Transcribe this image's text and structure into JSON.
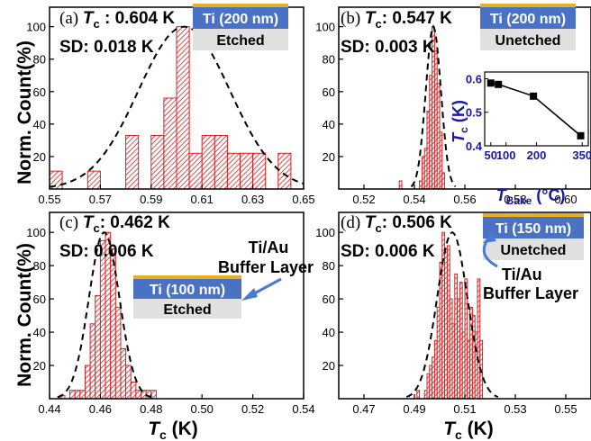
{
  "colors": {
    "bar_stroke": "#d42020",
    "fit_line": "#000000",
    "ti_layer": "#4a72c4",
    "au_layer": "#e8b020",
    "etch_box": "#e0e0e0",
    "inset_axis_text": "#1a1aa0",
    "arrow": "#4a7ad0"
  },
  "shared": {
    "ylabel": "Norm. Count(%)",
    "xlabel_T": "T",
    "xlabel_sub": "c",
    "xlabel_unit": " (K)"
  },
  "chart_data": [
    {
      "id": "a",
      "type": "bar",
      "panel_label": "(a) ",
      "tc_label": "T",
      "tc_sub": "c",
      "tc_value": " : 0.604 K",
      "sd_text": "SD: 0.018 K",
      "layer_label": "Ti (200 nm)",
      "etch_label": "Etched",
      "xlim": [
        0.55,
        0.65
      ],
      "ylim": [
        0,
        112
      ],
      "xticks": [
        "0.55",
        "0.57",
        "0.59",
        "0.61",
        "0.63",
        "0.65"
      ],
      "xtick_values": [
        0.55,
        0.57,
        0.59,
        0.61,
        0.63,
        0.65
      ],
      "yticks": [
        "20",
        "40",
        "60",
        "80",
        "100"
      ],
      "ytick_values": [
        20,
        40,
        60,
        80,
        100
      ],
      "bin_width": 0.005,
      "bins": [
        0.55,
        0.565,
        0.58,
        0.59,
        0.595,
        0.6,
        0.605,
        0.61,
        0.615,
        0.62,
        0.625,
        0.63,
        0.64
      ],
      "values": [
        11,
        11,
        33,
        33,
        56,
        100,
        22,
        33,
        33,
        22,
        22,
        22,
        22
      ],
      "fit": {
        "mu": 0.603,
        "sigma": 0.018,
        "amp": 100
      }
    },
    {
      "id": "b",
      "type": "bar",
      "panel_label": "(b) ",
      "tc_label": "T",
      "tc_sub": "c",
      "tc_value": ": 0.547 K",
      "sd_text": "SD: 0.003 K",
      "layer_label": "Ti (200 nm)",
      "etch_label": "Unetched",
      "xlim": [
        0.51,
        0.61
      ],
      "ylim": [
        0,
        112
      ],
      "xticks": [
        "0.52",
        "0.54",
        "0.56",
        "0.58",
        "0.60"
      ],
      "xtick_values": [
        0.52,
        0.54,
        0.56,
        0.58,
        0.6
      ],
      "yticks": [
        "20",
        "40",
        "60",
        "80",
        "100"
      ],
      "ytick_values": [
        20,
        40,
        60,
        80,
        100
      ],
      "bin_width": 0.001,
      "bins": [
        0.534,
        0.542,
        0.543,
        0.544,
        0.545,
        0.546,
        0.547,
        0.548,
        0.549,
        0.55,
        0.551
      ],
      "values": [
        5,
        5,
        20,
        25,
        48,
        70,
        100,
        85,
        65,
        35,
        10
      ],
      "fit": {
        "mu": 0.5475,
        "sigma": 0.003,
        "amp": 100
      },
      "inset": {
        "ylabel_T": "T",
        "ylabel_sub": "c",
        "ylabel_unit": " (K)",
        "xlabel_T": "T",
        "xlabel_sub": "Bake",
        "xlabel_unit": " (°C)",
        "xlim": [
          30,
          370
        ],
        "ylim": [
          0.4,
          0.62
        ],
        "xticks": [
          "50",
          "100",
          "200",
          "350"
        ],
        "xtick_values": [
          50,
          100,
          200,
          350
        ],
        "yticks": [
          "0.4",
          "0.5",
          "0.6"
        ],
        "ytick_values": [
          0.4,
          0.5,
          0.6
        ],
        "x": [
          50,
          75,
          190,
          345
        ],
        "y": [
          0.587,
          0.583,
          0.548,
          0.43
        ]
      }
    },
    {
      "id": "c",
      "type": "bar",
      "panel_label": "(c) ",
      "tc_label": "T",
      "tc_sub": "c",
      "tc_value": ": 0.462 K",
      "sd_text": "SD: 0.006 K",
      "layer_label": "Ti (100 nm)",
      "etch_label": "Etched",
      "buffer_label_1": "Ti/Au",
      "buffer_label_2": "Buffer Layer",
      "xlim": [
        0.44,
        0.54
      ],
      "ylim": [
        0,
        112
      ],
      "xticks": [
        "0.44",
        "0.46",
        "0.48",
        "0.50",
        "0.52",
        "0.54"
      ],
      "xtick_values": [
        0.44,
        0.46,
        0.48,
        0.5,
        0.52,
        0.54
      ],
      "yticks": [
        "20",
        "40",
        "60",
        "80",
        "100"
      ],
      "ytick_values": [
        20,
        40,
        60,
        80,
        100
      ],
      "bin_width": 0.002,
      "bins": [
        0.444,
        0.448,
        0.45,
        0.452,
        0.454,
        0.456,
        0.458,
        0.46,
        0.462,
        0.464,
        0.466,
        0.468,
        0.47,
        0.472,
        0.474,
        0.476,
        0.478,
        0.48
      ],
      "values": [
        2,
        5,
        5,
        5,
        20,
        45,
        62,
        95,
        100,
        90,
        55,
        30,
        20,
        10,
        5,
        5,
        5,
        5
      ],
      "fit": {
        "mu": 0.4615,
        "sigma": 0.006,
        "amp": 100
      }
    },
    {
      "id": "d",
      "type": "bar",
      "panel_label": "(d) ",
      "tc_label": "T",
      "tc_sub": "c",
      "tc_value": ": 0.506 K",
      "sd_text": "SD: 0.006 K",
      "layer_label": "Ti (150 nm)",
      "etch_label": "Unetched",
      "buffer_label_1": "Ti/Au",
      "buffer_label_2": "Buffer Layer",
      "xlim": [
        0.46,
        0.56
      ],
      "ylim": [
        0,
        112
      ],
      "xticks": [
        "0.47",
        "0.49",
        "0.51",
        "0.53",
        "0.55"
      ],
      "xtick_values": [
        0.47,
        0.49,
        0.51,
        0.53,
        0.55
      ],
      "yticks": [
        "20",
        "40",
        "60",
        "80",
        "100"
      ],
      "ytick_values": [
        20,
        40,
        60,
        80,
        100
      ],
      "bin_width": 0.001,
      "bins": [
        0.491,
        0.494,
        0.495,
        0.496,
        0.497,
        0.498,
        0.499,
        0.5,
        0.501,
        0.502,
        0.503,
        0.504,
        0.505,
        0.506,
        0.507,
        0.508,
        0.509,
        0.51,
        0.511,
        0.512,
        0.513,
        0.514,
        0.515,
        0.516
      ],
      "values": [
        5,
        5,
        15,
        20,
        25,
        35,
        55,
        82,
        100,
        90,
        92,
        60,
        45,
        75,
        60,
        70,
        40,
        72,
        35,
        55,
        50,
        40,
        72,
        35
      ],
      "fit": {
        "mu": 0.505,
        "sigma": 0.006,
        "amp": 100
      }
    }
  ]
}
